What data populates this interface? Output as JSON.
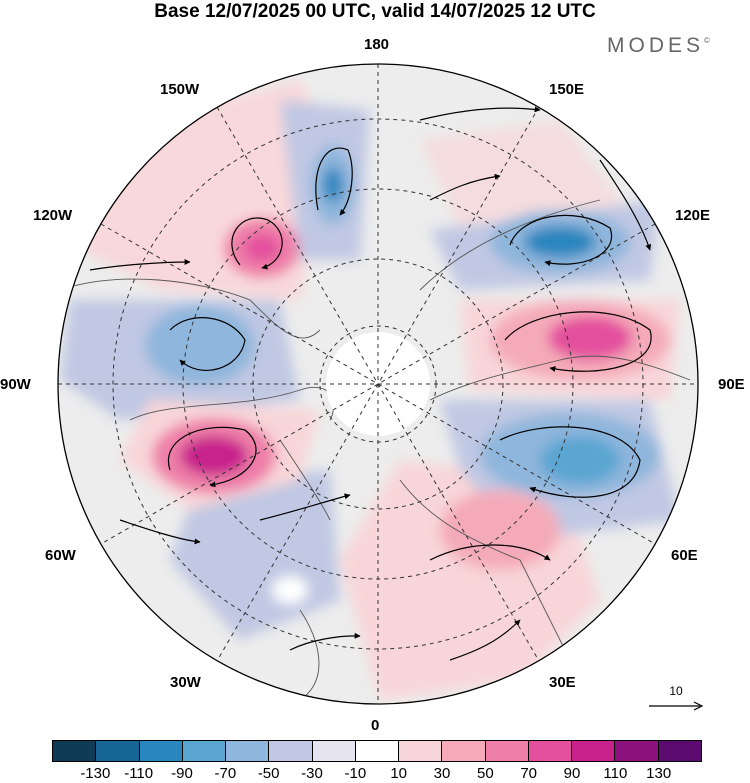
{
  "title": "Base 12/07/2025 00 UTC, valid 14/07/2025 12 UTC",
  "brand": {
    "name": "MODES",
    "mark": "©"
  },
  "map": {
    "projection": "north polar stereographic",
    "longitude_labels": {
      "top": "180",
      "bottom": "0",
      "left": "90W",
      "right": "90E",
      "upper_left": "150W",
      "upper_right": "150E",
      "mid_upper_left": "120W",
      "mid_upper_right": "120E",
      "mid_lower_left": "60W",
      "mid_lower_right": "60E",
      "lower_left": "30W",
      "lower_right": "30E"
    },
    "anomaly_centers": [
      {
        "region": "west of Canadian Arctic (near 120W)",
        "sign": "positive",
        "magnitude": 90
      },
      {
        "region": "Gulf of Alaska (near 165W)",
        "sign": "negative",
        "magnitude": -70
      },
      {
        "region": "Hudson Bay region (near 100W)",
        "sign": "negative",
        "magnitude": -50
      },
      {
        "region": "Labrador Sea / Baffin (near 70W)",
        "sign": "positive",
        "magnitude": 110
      },
      {
        "region": "Mid Atlantic (near 45W)",
        "sign": "negative",
        "magnitude": -30
      },
      {
        "region": "Eastern Siberia (near 135E)",
        "sign": "negative",
        "magnitude": -70
      },
      {
        "region": "Central Siberia (near 100E)",
        "sign": "positive",
        "magnitude": 90
      },
      {
        "region": "Western Siberia (near 75E)",
        "sign": "negative",
        "magnitude": -70
      },
      {
        "region": "Eastern Europe (near 35E)",
        "sign": "positive",
        "magnitude": 50
      }
    ]
  },
  "vector_reference": {
    "value": "10"
  },
  "colorbar": {
    "ticks": [
      "-130",
      "-110",
      "-90",
      "-70",
      "-50",
      "-30",
      "-10",
      "10",
      "30",
      "50",
      "70",
      "90",
      "110",
      "130"
    ],
    "colors": [
      "#0f3b57",
      "#176595",
      "#2a86bf",
      "#5aa5d2",
      "#8fb6dc",
      "#c0c8e3",
      "#e6e4f0",
      "#ffffff",
      "#f8d5d8",
      "#f4aab8",
      "#ee7fa8",
      "#e44f9e",
      "#c8218c",
      "#8b117e",
      "#5c0b70"
    ]
  }
}
